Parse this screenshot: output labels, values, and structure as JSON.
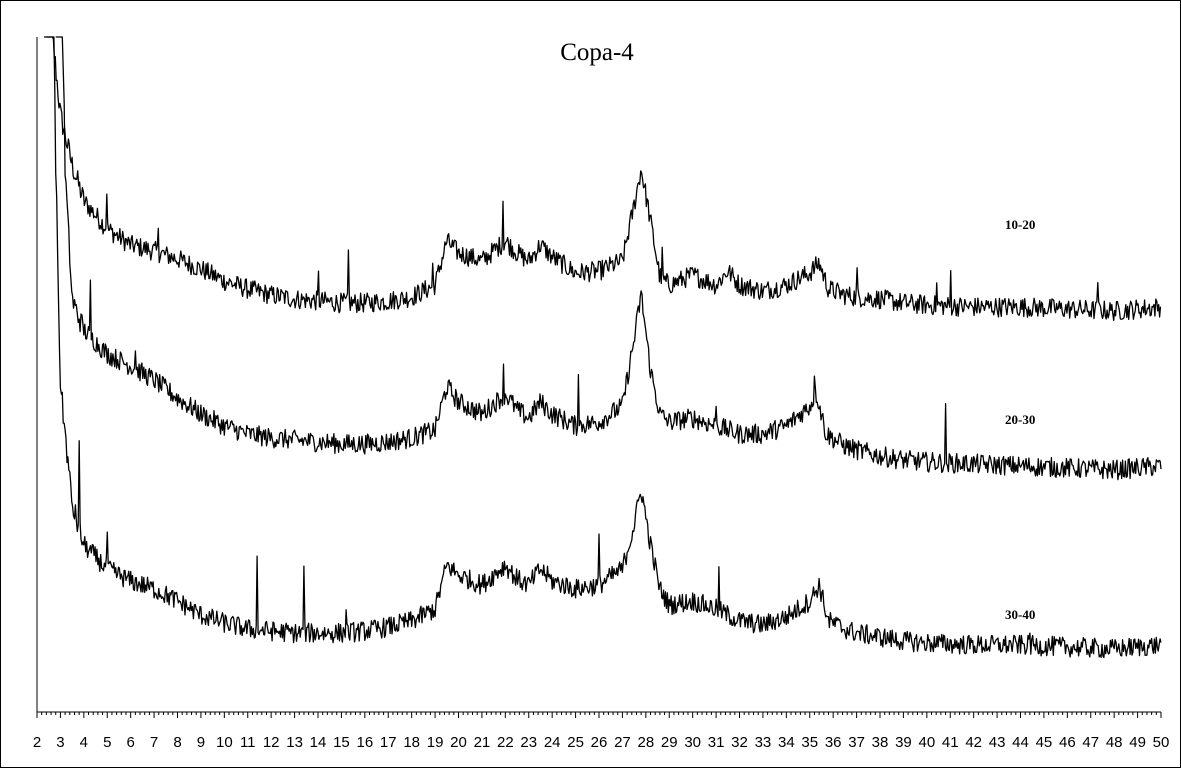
{
  "chart_data": {
    "type": "line",
    "title": "Copa-4",
    "xlabel": "",
    "ylabel": "",
    "xlim": [
      2,
      50
    ],
    "x_ticks": [
      2,
      3,
      4,
      5,
      6,
      7,
      8,
      9,
      10,
      11,
      12,
      13,
      14,
      15,
      16,
      17,
      18,
      19,
      20,
      21,
      22,
      23,
      24,
      25,
      26,
      27,
      28,
      29,
      30,
      31,
      32,
      33,
      34,
      35,
      36,
      37,
      38,
      39,
      40,
      41,
      42,
      43,
      44,
      45,
      46,
      47,
      48,
      49,
      50
    ],
    "grid": false,
    "series": [
      {
        "name": "10-20",
        "baseline": [
          [
            2.3,
            610
          ],
          [
            2.5,
            350
          ],
          [
            2.7,
            140
          ],
          [
            3,
            105
          ],
          [
            3.5,
            80
          ],
          [
            4,
            62
          ],
          [
            5,
            48
          ],
          [
            6,
            40
          ],
          [
            7,
            37
          ],
          [
            8,
            33
          ],
          [
            9,
            28
          ],
          [
            10,
            22
          ],
          [
            11,
            18
          ],
          [
            12,
            15
          ],
          [
            13,
            13
          ],
          [
            14,
            12
          ],
          [
            15,
            11
          ],
          [
            16,
            11
          ],
          [
            17,
            12
          ],
          [
            18,
            14
          ],
          [
            19,
            20
          ],
          [
            19.5,
            42
          ],
          [
            20,
            36
          ],
          [
            21,
            32
          ],
          [
            22,
            42
          ],
          [
            22.5,
            36
          ],
          [
            23,
            32
          ],
          [
            23.5,
            40
          ],
          [
            24,
            34
          ],
          [
            25,
            26
          ],
          [
            26,
            27
          ],
          [
            27,
            32
          ],
          [
            27.5,
            60
          ],
          [
            27.8,
            78
          ],
          [
            28.2,
            52
          ],
          [
            28.6,
            24
          ],
          [
            29,
            20
          ],
          [
            30,
            25
          ],
          [
            31,
            20
          ],
          [
            31.5,
            27
          ],
          [
            32,
            20
          ],
          [
            33,
            17
          ],
          [
            34,
            20
          ],
          [
            35,
            26
          ],
          [
            35.4,
            31
          ],
          [
            35.8,
            18
          ],
          [
            36.5,
            15
          ],
          [
            37,
            14
          ],
          [
            38,
            13
          ],
          [
            39,
            11
          ],
          [
            40,
            10
          ],
          [
            42,
            9
          ],
          [
            44,
            9
          ],
          [
            46,
            8
          ],
          [
            48,
            7
          ],
          [
            49,
            8
          ],
          [
            50,
            9
          ]
        ],
        "spikes": [
          [
            5,
            20
          ],
          [
            7.2,
            14
          ],
          [
            14,
            12
          ],
          [
            15.3,
            25
          ],
          [
            18.9,
            10
          ],
          [
            21.9,
            22
          ],
          [
            28.7,
            12
          ],
          [
            37,
            13
          ],
          [
            40.4,
            10
          ],
          [
            41,
            16
          ],
          [
            47.3,
            16
          ]
        ]
      },
      {
        "name": "20-30",
        "baseline": [
          [
            2.8,
            600
          ],
          [
            3,
            300
          ],
          [
            3.2,
            160
          ],
          [
            3.5,
            95
          ],
          [
            4,
            80
          ],
          [
            5,
            68
          ],
          [
            6,
            62
          ],
          [
            7,
            55
          ],
          [
            8,
            46
          ],
          [
            9,
            38
          ],
          [
            10,
            32
          ],
          [
            11,
            28
          ],
          [
            12,
            26
          ],
          [
            13,
            25
          ],
          [
            14,
            24
          ],
          [
            15,
            23
          ],
          [
            16,
            23
          ],
          [
            17,
            24
          ],
          [
            18,
            26
          ],
          [
            19,
            30
          ],
          [
            19.5,
            52
          ],
          [
            20,
            44
          ],
          [
            21,
            38
          ],
          [
            22,
            48
          ],
          [
            22.5,
            40
          ],
          [
            23,
            36
          ],
          [
            23.5,
            44
          ],
          [
            24,
            38
          ],
          [
            25,
            32
          ],
          [
            26,
            34
          ],
          [
            27,
            42
          ],
          [
            27.5,
            75
          ],
          [
            27.8,
            98
          ],
          [
            28.2,
            60
          ],
          [
            28.6,
            38
          ],
          [
            29,
            34
          ],
          [
            30,
            36
          ],
          [
            31,
            32
          ],
          [
            32,
            28
          ],
          [
            33,
            28
          ],
          [
            34,
            32
          ],
          [
            35,
            42
          ],
          [
            35.3,
            48
          ],
          [
            35.7,
            28
          ],
          [
            36.5,
            22
          ],
          [
            37,
            20
          ],
          [
            38,
            17
          ],
          [
            39,
            15
          ],
          [
            40,
            14
          ],
          [
            42,
            13
          ],
          [
            44,
            12
          ],
          [
            46,
            11
          ],
          [
            48,
            10
          ],
          [
            49,
            11
          ],
          [
            50,
            12
          ]
        ],
        "spikes": [
          [
            4.3,
            25
          ],
          [
            6.2,
            12
          ],
          [
            21.9,
            12
          ],
          [
            25.1,
            30
          ],
          [
            31,
            14
          ],
          [
            35.2,
            15
          ],
          [
            40.8,
            25
          ]
        ]
      },
      {
        "name": "30-40",
        "baseline": [
          [
            2.4,
            660
          ],
          [
            2.6,
            450
          ],
          [
            2.8,
            250
          ],
          [
            3,
            140
          ],
          [
            3.5,
            80
          ],
          [
            4,
            60
          ],
          [
            5,
            48
          ],
          [
            6,
            42
          ],
          [
            7,
            38
          ],
          [
            8,
            32
          ],
          [
            9,
            25
          ],
          [
            10,
            21
          ],
          [
            11,
            18
          ],
          [
            12,
            17
          ],
          [
            13,
            16
          ],
          [
            14,
            16
          ],
          [
            15,
            16
          ],
          [
            16,
            17
          ],
          [
            17,
            19
          ],
          [
            18,
            22
          ],
          [
            19,
            28
          ],
          [
            19.5,
            50
          ],
          [
            20,
            45
          ],
          [
            21,
            40
          ],
          [
            22,
            50
          ],
          [
            22.5,
            43
          ],
          [
            23,
            40
          ],
          [
            23.5,
            48
          ],
          [
            24,
            42
          ],
          [
            25,
            38
          ],
          [
            26,
            40
          ],
          [
            27,
            48
          ],
          [
            27.5,
            70
          ],
          [
            27.8,
            88
          ],
          [
            28.2,
            60
          ],
          [
            28.6,
            38
          ],
          [
            29,
            30
          ],
          [
            30,
            32
          ],
          [
            31,
            28
          ],
          [
            32,
            22
          ],
          [
            33,
            20
          ],
          [
            34,
            24
          ],
          [
            35,
            32
          ],
          [
            35.4,
            40
          ],
          [
            35.8,
            22
          ],
          [
            36.5,
            18
          ],
          [
            37,
            16
          ],
          [
            38,
            14
          ],
          [
            39,
            12
          ],
          [
            40,
            11
          ],
          [
            42,
            10
          ],
          [
            44,
            10
          ],
          [
            46,
            9
          ],
          [
            48,
            8
          ],
          [
            49,
            9
          ],
          [
            50,
            10
          ]
        ],
        "spikes": [
          [
            3.8,
            40
          ],
          [
            5,
            20
          ],
          [
            11.4,
            35
          ],
          [
            13.4,
            35
          ],
          [
            15.2,
            15
          ],
          [
            26,
            25
          ],
          [
            31.1,
            20
          ],
          [
            44.4,
            8
          ]
        ]
      }
    ]
  }
}
